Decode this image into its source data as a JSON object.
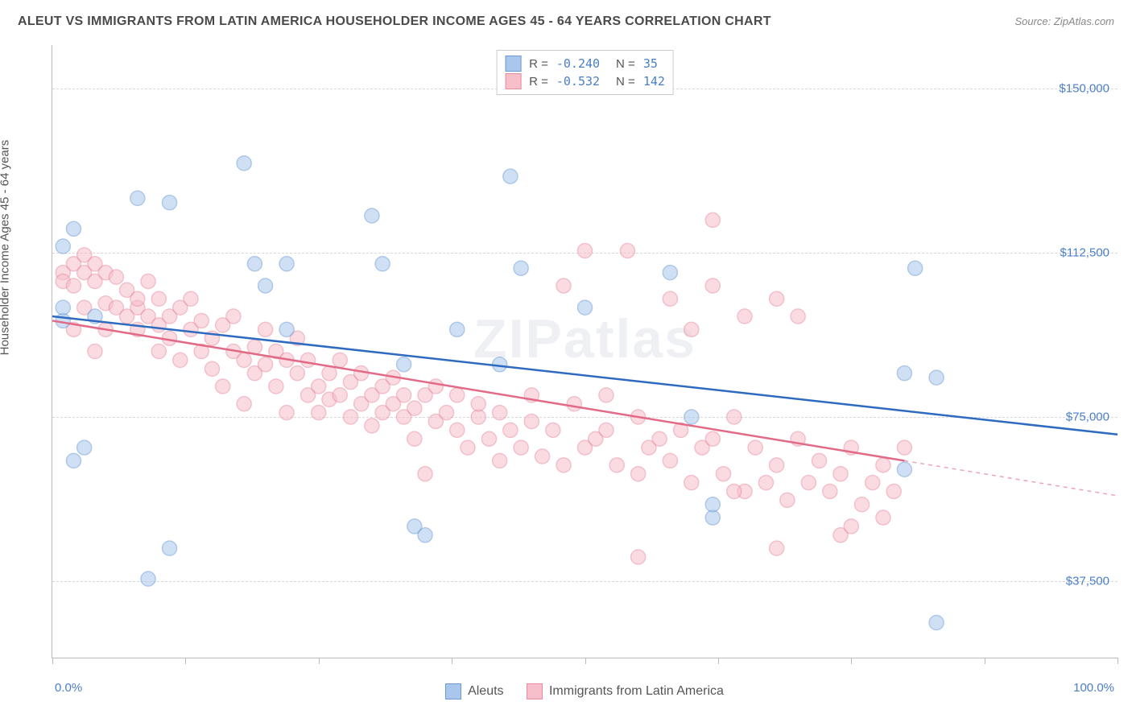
{
  "title": "ALEUT VS IMMIGRANTS FROM LATIN AMERICA HOUSEHOLDER INCOME AGES 45 - 64 YEARS CORRELATION CHART",
  "source": "Source: ZipAtlas.com",
  "watermark": "ZIPatlas",
  "ylabel": "Householder Income Ages 45 - 64 years",
  "chart": {
    "type": "scatter",
    "xlim": [
      0,
      100
    ],
    "ylim": [
      20000,
      160000
    ],
    "xaxis_min_label": "0.0%",
    "xaxis_max_label": "100.0%",
    "yticks": [
      37500,
      75000,
      112500,
      150000
    ],
    "ytick_labels": [
      "$37,500",
      "$75,000",
      "$112,500",
      "$150,000"
    ],
    "xticks": [
      0,
      12.5,
      25,
      37.5,
      50,
      62.5,
      75,
      87.5,
      100
    ],
    "background_color": "#ffffff",
    "grid_color": "#d8d8d8",
    "axis_color": "#bbbbbb",
    "tick_label_color": "#4a7ec9",
    "marker_radius": 9,
    "marker_opacity": 0.55,
    "series": [
      {
        "name": "Aleuts",
        "color_fill": "#a9c7ec",
        "color_stroke": "#6b9bd6",
        "line_color": "#2e6bc0",
        "R": "-0.240",
        "N": "35",
        "trend": {
          "x1": 0,
          "y1": 98000,
          "x2": 100,
          "y2": 71000
        },
        "trend_dash_from_x": 100,
        "points": [
          [
            1,
            114000
          ],
          [
            1,
            97000
          ],
          [
            1,
            100000
          ],
          [
            2,
            118000
          ],
          [
            2,
            65000
          ],
          [
            3,
            68000
          ],
          [
            4,
            98000
          ],
          [
            8,
            125000
          ],
          [
            9,
            38000
          ],
          [
            11,
            45000
          ],
          [
            11,
            124000
          ],
          [
            18,
            133000
          ],
          [
            19,
            110000
          ],
          [
            20,
            105000
          ],
          [
            22,
            95000
          ],
          [
            22,
            110000
          ],
          [
            30,
            121000
          ],
          [
            31,
            110000
          ],
          [
            33,
            87000
          ],
          [
            34,
            50000
          ],
          [
            35,
            48000
          ],
          [
            42,
            87000
          ],
          [
            43,
            130000
          ],
          [
            44,
            109000
          ],
          [
            50,
            100000
          ],
          [
            58,
            108000
          ],
          [
            60,
            75000
          ],
          [
            62,
            52000
          ],
          [
            80,
            85000
          ],
          [
            80,
            63000
          ],
          [
            81,
            109000
          ],
          [
            83,
            84000
          ],
          [
            83,
            28000
          ],
          [
            62,
            55000
          ],
          [
            38,
            95000
          ]
        ]
      },
      {
        "name": "Immigrants from Latin America",
        "color_fill": "#f6bfca",
        "color_stroke": "#e88ba0",
        "line_color": "#e26a87",
        "R": "-0.532",
        "N": "142",
        "trend": {
          "x1": 0,
          "y1": 97000,
          "x2": 80,
          "y2": 65000
        },
        "trend_dash_from_x": 80,
        "trend_dash": {
          "x1": 80,
          "y1": 65000,
          "x2": 100,
          "y2": 57000
        },
        "points": [
          [
            1,
            108000
          ],
          [
            1,
            106000
          ],
          [
            2,
            110000
          ],
          [
            2,
            105000
          ],
          [
            2,
            95000
          ],
          [
            3,
            108000
          ],
          [
            3,
            112000
          ],
          [
            3,
            100000
          ],
          [
            4,
            106000
          ],
          [
            4,
            110000
          ],
          [
            4,
            90000
          ],
          [
            5,
            108000
          ],
          [
            5,
            101000
          ],
          [
            5,
            95000
          ],
          [
            6,
            107000
          ],
          [
            6,
            100000
          ],
          [
            7,
            104000
          ],
          [
            7,
            98000
          ],
          [
            8,
            100000
          ],
          [
            8,
            102000
          ],
          [
            8,
            95000
          ],
          [
            9,
            106000
          ],
          [
            9,
            98000
          ],
          [
            10,
            96000
          ],
          [
            10,
            102000
          ],
          [
            10,
            90000
          ],
          [
            11,
            98000
          ],
          [
            11,
            93000
          ],
          [
            12,
            100000
          ],
          [
            12,
            88000
          ],
          [
            13,
            95000
          ],
          [
            13,
            102000
          ],
          [
            14,
            90000
          ],
          [
            14,
            97000
          ],
          [
            15,
            93000
          ],
          [
            15,
            86000
          ],
          [
            16,
            96000
          ],
          [
            16,
            82000
          ],
          [
            17,
            90000
          ],
          [
            17,
            98000
          ],
          [
            18,
            88000
          ],
          [
            18,
            78000
          ],
          [
            19,
            91000
          ],
          [
            19,
            85000
          ],
          [
            20,
            87000
          ],
          [
            20,
            95000
          ],
          [
            21,
            82000
          ],
          [
            21,
            90000
          ],
          [
            22,
            88000
          ],
          [
            22,
            76000
          ],
          [
            23,
            85000
          ],
          [
            23,
            93000
          ],
          [
            24,
            80000
          ],
          [
            24,
            88000
          ],
          [
            25,
            82000
          ],
          [
            25,
            76000
          ],
          [
            26,
            85000
          ],
          [
            26,
            79000
          ],
          [
            27,
            80000
          ],
          [
            27,
            88000
          ],
          [
            28,
            75000
          ],
          [
            28,
            83000
          ],
          [
            29,
            78000
          ],
          [
            29,
            85000
          ],
          [
            30,
            80000
          ],
          [
            30,
            73000
          ],
          [
            31,
            82000
          ],
          [
            31,
            76000
          ],
          [
            32,
            78000
          ],
          [
            32,
            84000
          ],
          [
            33,
            75000
          ],
          [
            33,
            80000
          ],
          [
            34,
            77000
          ],
          [
            34,
            70000
          ],
          [
            35,
            80000
          ],
          [
            35,
            62000
          ],
          [
            36,
            74000
          ],
          [
            36,
            82000
          ],
          [
            37,
            76000
          ],
          [
            38,
            72000
          ],
          [
            38,
            80000
          ],
          [
            39,
            68000
          ],
          [
            40,
            75000
          ],
          [
            40,
            78000
          ],
          [
            41,
            70000
          ],
          [
            42,
            65000
          ],
          [
            42,
            76000
          ],
          [
            43,
            72000
          ],
          [
            44,
            68000
          ],
          [
            45,
            74000
          ],
          [
            45,
            80000
          ],
          [
            46,
            66000
          ],
          [
            47,
            72000
          ],
          [
            48,
            64000
          ],
          [
            48,
            105000
          ],
          [
            49,
            78000
          ],
          [
            50,
            113000
          ],
          [
            50,
            68000
          ],
          [
            51,
            70000
          ],
          [
            52,
            72000
          ],
          [
            52,
            80000
          ],
          [
            53,
            64000
          ],
          [
            54,
            113000
          ],
          [
            55,
            62000
          ],
          [
            55,
            75000
          ],
          [
            56,
            68000
          ],
          [
            57,
            70000
          ],
          [
            58,
            65000
          ],
          [
            58,
            102000
          ],
          [
            59,
            72000
          ],
          [
            60,
            95000
          ],
          [
            60,
            60000
          ],
          [
            61,
            68000
          ],
          [
            62,
            105000
          ],
          [
            62,
            70000
          ],
          [
            63,
            62000
          ],
          [
            64,
            75000
          ],
          [
            65,
            98000
          ],
          [
            65,
            58000
          ],
          [
            66,
            68000
          ],
          [
            67,
            60000
          ],
          [
            68,
            102000
          ],
          [
            68,
            64000
          ],
          [
            69,
            56000
          ],
          [
            70,
            70000
          ],
          [
            70,
            98000
          ],
          [
            71,
            60000
          ],
          [
            72,
            65000
          ],
          [
            73,
            58000
          ],
          [
            74,
            62000
          ],
          [
            74,
            48000
          ],
          [
            75,
            68000
          ],
          [
            76,
            55000
          ],
          [
            77,
            60000
          ],
          [
            78,
            52000
          ],
          [
            78,
            64000
          ],
          [
            79,
            58000
          ],
          [
            80,
            68000
          ],
          [
            62,
            120000
          ],
          [
            75,
            50000
          ],
          [
            68,
            45000
          ],
          [
            55,
            43000
          ],
          [
            64,
            58000
          ]
        ]
      }
    ]
  },
  "legend_bottom": [
    {
      "label": "Aleuts"
    },
    {
      "label": "Immigrants from Latin America"
    }
  ]
}
